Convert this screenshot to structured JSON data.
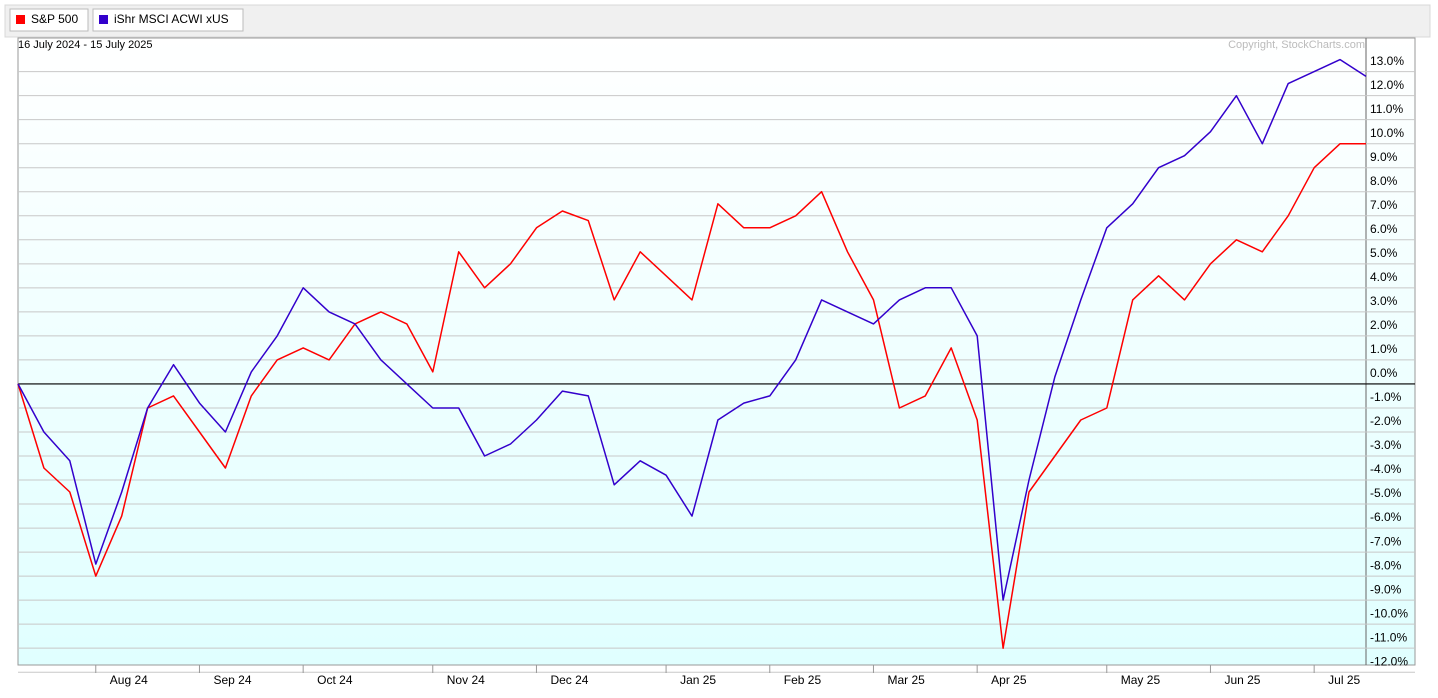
{
  "chart_data": {
    "type": "line",
    "subtitle": "16 July 2024 - 15 July 2025",
    "annotation": "Copyright, StockCharts.com",
    "categories": [
      null,
      null,
      null,
      "Aug 24",
      null,
      null,
      null,
      "Sep 24",
      null,
      null,
      null,
      "Oct 24",
      null,
      null,
      null,
      null,
      "Nov 24",
      null,
      null,
      null,
      "Dec 24",
      null,
      null,
      null,
      null,
      "Jan 25",
      null,
      null,
      null,
      "Feb 25",
      null,
      null,
      null,
      "Mar 25",
      null,
      null,
      null,
      "Apr 25",
      null,
      null,
      null,
      null,
      "May 25",
      null,
      null,
      null,
      "Jun 25",
      null,
      null,
      null,
      "Jul 25",
      null,
      null
    ],
    "series": [
      {
        "name": "S&P 500",
        "color": "#ff0000",
        "values": [
          0,
          -3.5,
          -4.5,
          -8.0,
          -5.5,
          -1.0,
          -0.5,
          -2.0,
          -3.5,
          -0.5,
          1.0,
          1.5,
          1.0,
          2.5,
          3.0,
          2.5,
          0.5,
          5.5,
          4.0,
          5.0,
          6.5,
          7.2,
          6.8,
          3.5,
          5.5,
          4.5,
          3.5,
          7.5,
          6.5,
          6.5,
          7.0,
          8.0,
          5.5,
          3.5,
          -1.0,
          -0.5,
          1.5,
          -1.5,
          -11.0,
          -4.5,
          -3.0,
          -1.5,
          -1.0,
          3.5,
          4.5,
          3.5,
          5.0,
          6.0,
          5.5,
          7.0,
          9.0,
          10.0,
          10.0
        ]
      },
      {
        "name": "iShr MSCI ACWI xUS",
        "color": "#3300cc",
        "values": [
          0,
          -2.0,
          -3.2,
          -7.5,
          -4.5,
          -1.0,
          0.8,
          -0.8,
          -2.0,
          0.5,
          2.0,
          4.0,
          3.0,
          2.5,
          1.0,
          0.0,
          -1.0,
          -1.0,
          -3.0,
          -2.5,
          -1.5,
          -0.3,
          -0.5,
          -4.2,
          -3.2,
          -3.8,
          -5.5,
          -1.5,
          -0.8,
          -0.5,
          1.0,
          3.5,
          3.0,
          2.5,
          3.5,
          4.0,
          4.0,
          2.0,
          -9.0,
          -4.0,
          0.3,
          3.5,
          6.5,
          7.5,
          9.0,
          9.5,
          10.5,
          12.0,
          10.0,
          12.5,
          13.0,
          13.5,
          12.8
        ]
      }
    ],
    "ylim": [
      -11.7,
      14.4
    ],
    "yticks": [
      {
        "value": -12,
        "label": "-12.0%"
      },
      {
        "value": -11,
        "label": "-11.0%"
      },
      {
        "value": -10,
        "label": "-10.0%"
      },
      {
        "value": -9,
        "label": "-9.0%"
      },
      {
        "value": -8,
        "label": "-8.0%"
      },
      {
        "value": -7,
        "label": "-7.0%"
      },
      {
        "value": -6,
        "label": "-6.0%"
      },
      {
        "value": -5,
        "label": "-5.0%"
      },
      {
        "value": -4,
        "label": "-4.0%"
      },
      {
        "value": -3,
        "label": "-3.0%"
      },
      {
        "value": -2,
        "label": "-2.0%"
      },
      {
        "value": -1,
        "label": "-1.0%"
      },
      {
        "value": 0,
        "label": "0.0%"
      },
      {
        "value": 1,
        "label": "1.0%"
      },
      {
        "value": 2,
        "label": "2.0%"
      },
      {
        "value": 3,
        "label": "3.0%"
      },
      {
        "value": 4,
        "label": "4.0%"
      },
      {
        "value": 5,
        "label": "5.0%"
      },
      {
        "value": 6,
        "label": "6.0%"
      },
      {
        "value": 7,
        "label": "7.0%"
      },
      {
        "value": 8,
        "label": "8.0%"
      },
      {
        "value": 9,
        "label": "9.0%"
      },
      {
        "value": 10,
        "label": "10.0%"
      },
      {
        "value": 11,
        "label": "11.0%"
      },
      {
        "value": 12,
        "label": "12.0%"
      },
      {
        "value": 13,
        "label": "13.0%"
      }
    ],
    "grid": true
  }
}
